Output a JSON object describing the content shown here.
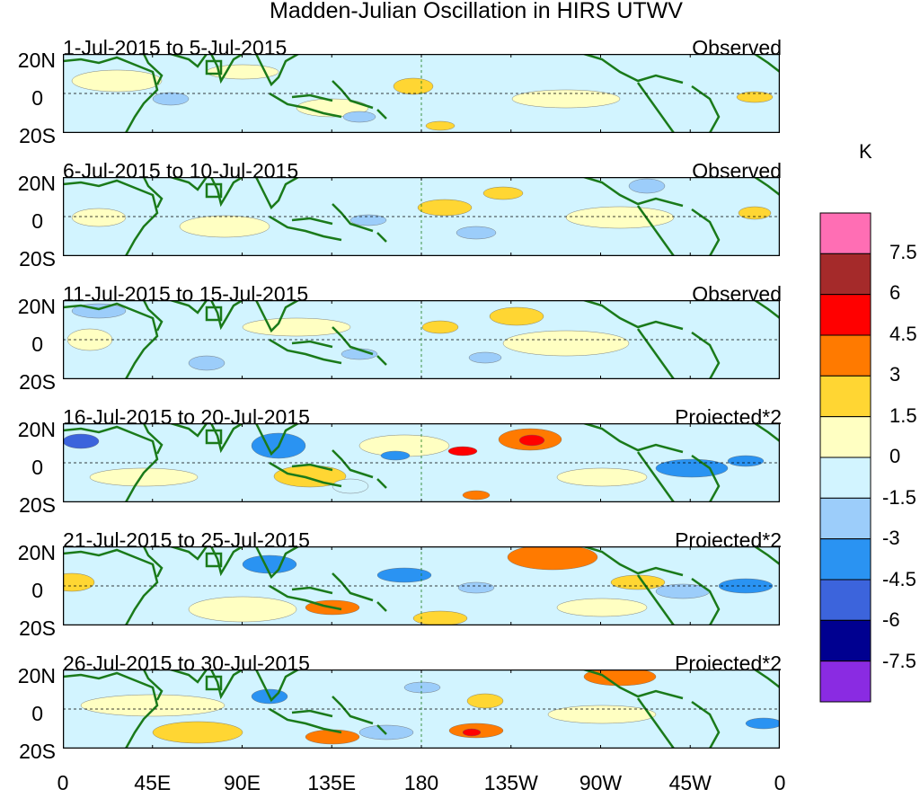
{
  "title": "Madden-Julian Oscillation in HIRS UTWV",
  "units": "K",
  "lat_labels": [
    "20N",
    "0",
    "20S"
  ],
  "x_ticks": [
    "0",
    "45E",
    "90E",
    "135E",
    "180",
    "135W",
    "90W",
    "45W",
    "0"
  ],
  "panels": [
    {
      "date_range": "1-Jul-2015 to 5-Jul-2015",
      "type": "Observed"
    },
    {
      "date_range": "6-Jul-2015 to 10-Jul-2015",
      "type": "Observed"
    },
    {
      "date_range": "11-Jul-2015 to 15-Jul-2015",
      "type": "Observed"
    },
    {
      "date_range": "16-Jul-2015 to 20-Jul-2015",
      "type": "Projected*2"
    },
    {
      "date_range": "21-Jul-2015 to 25-Jul-2015",
      "type": "Projected*2"
    },
    {
      "date_range": "26-Jul-2015 to 30-Jul-2015",
      "type": "Projected*2"
    }
  ],
  "colorbar": {
    "labels": [
      "7.5",
      "6",
      "4.5",
      "3",
      "1.5",
      "0",
      "-1.5",
      "-3",
      "-4.5",
      "-6",
      "-7.5"
    ],
    "colors_top_to_bottom": [
      "#ff6eb4",
      "#a52a2a",
      "#ff0000",
      "#ff7a00",
      "#ffd633",
      "#ffffc2",
      "#d2f4ff",
      "#9ccdfa",
      "#2a93f2",
      "#3c64dc",
      "#000090",
      "#8a2be2"
    ]
  },
  "colors": {
    "land_outline": "#1a7a1a",
    "map_border": "#000000"
  }
}
